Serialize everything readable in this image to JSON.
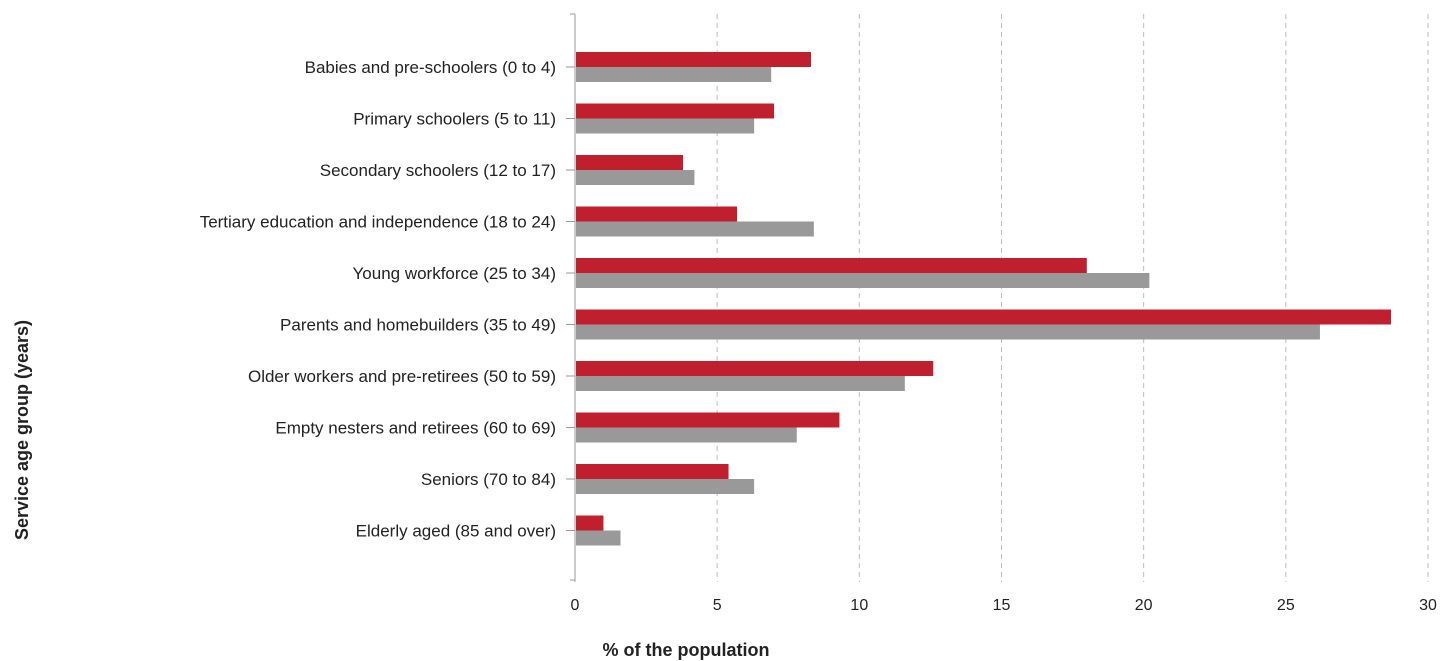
{
  "chart_data": {
    "type": "bar",
    "orientation": "horizontal",
    "categories": [
      "Babies and pre-schoolers (0 to 4)",
      "Primary schoolers (5 to 11)",
      "Secondary schoolers (12 to 17)",
      "Tertiary education and independence (18 to 24)",
      "Young workforce (25 to 34)",
      "Parents and homebuilders (35 to 49)",
      "Older workers and pre-retirees (50 to 59)",
      "Empty nesters and retirees (60 to 69)",
      "Seniors (70 to 84)",
      "Elderly aged (85 and over)"
    ],
    "series": [
      {
        "color": "#c0202e",
        "values": [
          8.3,
          7.0,
          3.8,
          5.7,
          18.0,
          28.7,
          12.6,
          9.3,
          5.4,
          1.0
        ]
      },
      {
        "color": "#999999",
        "values": [
          6.9,
          6.3,
          4.2,
          8.4,
          20.2,
          26.2,
          11.6,
          7.8,
          6.3,
          1.6
        ]
      }
    ],
    "xlabel": "% of the population",
    "ylabel": "Service age group (years)",
    "xlim": [
      0,
      30
    ],
    "xticks": [
      "0",
      "5",
      "10",
      "15",
      "20",
      "25",
      "30"
    ],
    "grid": "vertical dashed",
    "legend": "none"
  }
}
